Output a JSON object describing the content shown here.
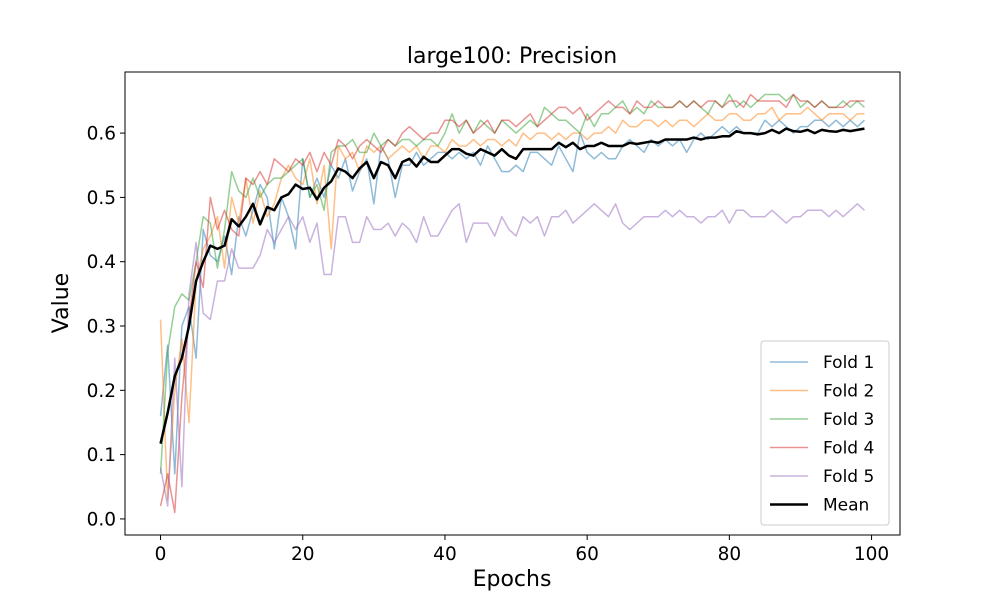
{
  "chart_data": {
    "type": "line",
    "title": "large100: Precision",
    "xlabel": "Epochs",
    "ylabel": "Value",
    "xlim": [
      -5,
      104
    ],
    "ylim": [
      -0.025,
      0.695
    ],
    "xticks": [
      0,
      20,
      40,
      60,
      80,
      100
    ],
    "yticks": [
      0.0,
      0.1,
      0.2,
      0.3,
      0.4,
      0.5,
      0.6
    ],
    "ytick_labels": [
      "0.0",
      "0.1",
      "0.2",
      "0.3",
      "0.4",
      "0.5",
      "0.6"
    ],
    "xtick_labels": [
      "0",
      "20",
      "40",
      "60",
      "80",
      "100"
    ],
    "grid": false,
    "legend_position": "lower-right",
    "series": [
      {
        "name": "Fold 1",
        "color": "#1f77b4",
        "alpha": 0.5,
        "linewidth": 1.5,
        "values": [
          0.16,
          0.27,
          0.07,
          0.3,
          0.33,
          0.25,
          0.45,
          0.41,
          0.4,
          0.44,
          0.38,
          0.47,
          0.44,
          0.48,
          0.52,
          0.5,
          0.42,
          0.5,
          0.47,
          0.42,
          0.56,
          0.5,
          0.53,
          0.5,
          0.55,
          0.53,
          0.56,
          0.51,
          0.54,
          0.56,
          0.49,
          0.58,
          0.56,
          0.5,
          0.55,
          0.55,
          0.57,
          0.55,
          0.56,
          0.57,
          0.57,
          0.56,
          0.57,
          0.56,
          0.57,
          0.55,
          0.58,
          0.56,
          0.54,
          0.54,
          0.55,
          0.54,
          0.57,
          0.57,
          0.56,
          0.55,
          0.58,
          0.56,
          0.54,
          0.6,
          0.57,
          0.56,
          0.57,
          0.56,
          0.56,
          0.58,
          0.59,
          0.58,
          0.57,
          0.59,
          0.58,
          0.59,
          0.58,
          0.59,
          0.57,
          0.59,
          0.6,
          0.59,
          0.6,
          0.61,
          0.6,
          0.61,
          0.6,
          0.6,
          0.6,
          0.62,
          0.61,
          0.62,
          0.61,
          0.6,
          0.61,
          0.61,
          0.62,
          0.62,
          0.61,
          0.62,
          0.61,
          0.62,
          0.61,
          0.62
        ]
      },
      {
        "name": "Fold 2",
        "color": "#ff7f0e",
        "alpha": 0.5,
        "linewidth": 1.5,
        "values": [
          0.31,
          0.03,
          0.2,
          0.28,
          0.15,
          0.37,
          0.42,
          0.44,
          0.47,
          0.39,
          0.5,
          0.46,
          0.53,
          0.46,
          0.51,
          0.47,
          0.49,
          0.53,
          0.55,
          0.53,
          0.52,
          0.56,
          0.49,
          0.55,
          0.42,
          0.58,
          0.56,
          0.57,
          0.54,
          0.58,
          0.57,
          0.58,
          0.56,
          0.57,
          0.58,
          0.57,
          0.58,
          0.56,
          0.58,
          0.58,
          0.57,
          0.59,
          0.58,
          0.58,
          0.59,
          0.58,
          0.59,
          0.59,
          0.58,
          0.59,
          0.58,
          0.6,
          0.59,
          0.6,
          0.6,
          0.59,
          0.6,
          0.59,
          0.6,
          0.6,
          0.59,
          0.6,
          0.6,
          0.61,
          0.6,
          0.62,
          0.61,
          0.61,
          0.62,
          0.62,
          0.61,
          0.62,
          0.61,
          0.62,
          0.62,
          0.61,
          0.62,
          0.63,
          0.62,
          0.62,
          0.63,
          0.63,
          0.62,
          0.62,
          0.63,
          0.63,
          0.64,
          0.62,
          0.63,
          0.63,
          0.63,
          0.64,
          0.63,
          0.62,
          0.63,
          0.63,
          0.63,
          0.62,
          0.63,
          0.63
        ]
      },
      {
        "name": "Fold 3",
        "color": "#2ca02c",
        "alpha": 0.5,
        "linewidth": 1.5,
        "values": [
          0.07,
          0.26,
          0.33,
          0.35,
          0.34,
          0.4,
          0.47,
          0.46,
          0.39,
          0.45,
          0.54,
          0.51,
          0.5,
          0.53,
          0.5,
          0.52,
          0.53,
          0.53,
          0.54,
          0.55,
          0.56,
          0.5,
          0.52,
          0.48,
          0.57,
          0.58,
          0.58,
          0.59,
          0.57,
          0.57,
          0.6,
          0.58,
          0.59,
          0.58,
          0.59,
          0.59,
          0.58,
          0.59,
          0.59,
          0.58,
          0.6,
          0.63,
          0.6,
          0.62,
          0.6,
          0.62,
          0.61,
          0.6,
          0.62,
          0.61,
          0.6,
          0.61,
          0.62,
          0.61,
          0.64,
          0.63,
          0.62,
          0.62,
          0.61,
          0.6,
          0.63,
          0.61,
          0.63,
          0.63,
          0.64,
          0.65,
          0.63,
          0.64,
          0.63,
          0.65,
          0.64,
          0.64,
          0.64,
          0.65,
          0.64,
          0.65,
          0.64,
          0.63,
          0.65,
          0.64,
          0.66,
          0.64,
          0.65,
          0.64,
          0.65,
          0.66,
          0.66,
          0.66,
          0.65,
          0.66,
          0.64,
          0.65,
          0.64,
          0.65,
          0.64,
          0.64,
          0.65,
          0.64,
          0.65,
          0.64
        ]
      },
      {
        "name": "Fold 4",
        "color": "#d62728",
        "alpha": 0.5,
        "linewidth": 1.5,
        "values": [
          0.02,
          0.07,
          0.01,
          0.19,
          0.31,
          0.4,
          0.36,
          0.5,
          0.45,
          0.48,
          0.45,
          0.44,
          0.53,
          0.52,
          0.54,
          0.52,
          0.56,
          0.55,
          0.54,
          0.56,
          0.55,
          0.57,
          0.54,
          0.57,
          0.55,
          0.59,
          0.58,
          0.56,
          0.58,
          0.59,
          0.58,
          0.57,
          0.59,
          0.58,
          0.6,
          0.61,
          0.6,
          0.59,
          0.6,
          0.6,
          0.62,
          0.62,
          0.61,
          0.62,
          0.6,
          0.61,
          0.62,
          0.6,
          0.62,
          0.62,
          0.61,
          0.62,
          0.63,
          0.61,
          0.62,
          0.63,
          0.64,
          0.64,
          0.63,
          0.64,
          0.62,
          0.63,
          0.64,
          0.65,
          0.64,
          0.64,
          0.63,
          0.65,
          0.64,
          0.64,
          0.65,
          0.64,
          0.64,
          0.65,
          0.64,
          0.65,
          0.64,
          0.65,
          0.65,
          0.64,
          0.65,
          0.65,
          0.64,
          0.66,
          0.65,
          0.65,
          0.65,
          0.65,
          0.64,
          0.66,
          0.65,
          0.65,
          0.64,
          0.65,
          0.64,
          0.64,
          0.64,
          0.65,
          0.65,
          0.65
        ]
      },
      {
        "name": "Fold 5",
        "color": "#9467bd",
        "alpha": 0.5,
        "linewidth": 1.5,
        "values": [
          0.08,
          0.02,
          0.25,
          0.05,
          0.35,
          0.43,
          0.32,
          0.31,
          0.37,
          0.37,
          0.42,
          0.39,
          0.39,
          0.39,
          0.41,
          0.45,
          0.43,
          0.45,
          0.47,
          0.45,
          0.47,
          0.43,
          0.46,
          0.38,
          0.38,
          0.47,
          0.47,
          0.43,
          0.43,
          0.47,
          0.45,
          0.45,
          0.46,
          0.44,
          0.46,
          0.45,
          0.43,
          0.47,
          0.44,
          0.44,
          0.46,
          0.48,
          0.49,
          0.43,
          0.46,
          0.46,
          0.46,
          0.44,
          0.47,
          0.45,
          0.44,
          0.47,
          0.46,
          0.47,
          0.44,
          0.47,
          0.47,
          0.48,
          0.46,
          0.47,
          0.48,
          0.49,
          0.48,
          0.47,
          0.49,
          0.46,
          0.45,
          0.46,
          0.47,
          0.47,
          0.47,
          0.48,
          0.47,
          0.48,
          0.47,
          0.47,
          0.46,
          0.47,
          0.47,
          0.48,
          0.46,
          0.48,
          0.48,
          0.47,
          0.47,
          0.47,
          0.48,
          0.47,
          0.46,
          0.47,
          0.47,
          0.48,
          0.48,
          0.48,
          0.47,
          0.48,
          0.47,
          0.48,
          0.49,
          0.48
        ]
      },
      {
        "name": "Mean",
        "color": "#000000",
        "alpha": 1.0,
        "linewidth": 2.5,
        "values": [
          0.117,
          0.165,
          0.222,
          0.25,
          0.3,
          0.37,
          0.4,
          0.425,
          0.42,
          0.425,
          0.466,
          0.455,
          0.47,
          0.49,
          0.458,
          0.485,
          0.48,
          0.5,
          0.505,
          0.52,
          0.513,
          0.515,
          0.497,
          0.515,
          0.525,
          0.545,
          0.54,
          0.53,
          0.545,
          0.555,
          0.53,
          0.555,
          0.55,
          0.53,
          0.555,
          0.56,
          0.548,
          0.563,
          0.555,
          0.555,
          0.565,
          0.575,
          0.575,
          0.568,
          0.565,
          0.575,
          0.57,
          0.565,
          0.575,
          0.565,
          0.56,
          0.575,
          0.575,
          0.575,
          0.575,
          0.575,
          0.585,
          0.578,
          0.585,
          0.575,
          0.58,
          0.58,
          0.585,
          0.58,
          0.58,
          0.58,
          0.585,
          0.583,
          0.585,
          0.587,
          0.585,
          0.59,
          0.59,
          0.59,
          0.59,
          0.593,
          0.59,
          0.593,
          0.593,
          0.595,
          0.595,
          0.603,
          0.6,
          0.6,
          0.598,
          0.6,
          0.605,
          0.6,
          0.607,
          0.603,
          0.602,
          0.605,
          0.6,
          0.605,
          0.603,
          0.602,
          0.605,
          0.603,
          0.605,
          0.607
        ]
      }
    ]
  }
}
